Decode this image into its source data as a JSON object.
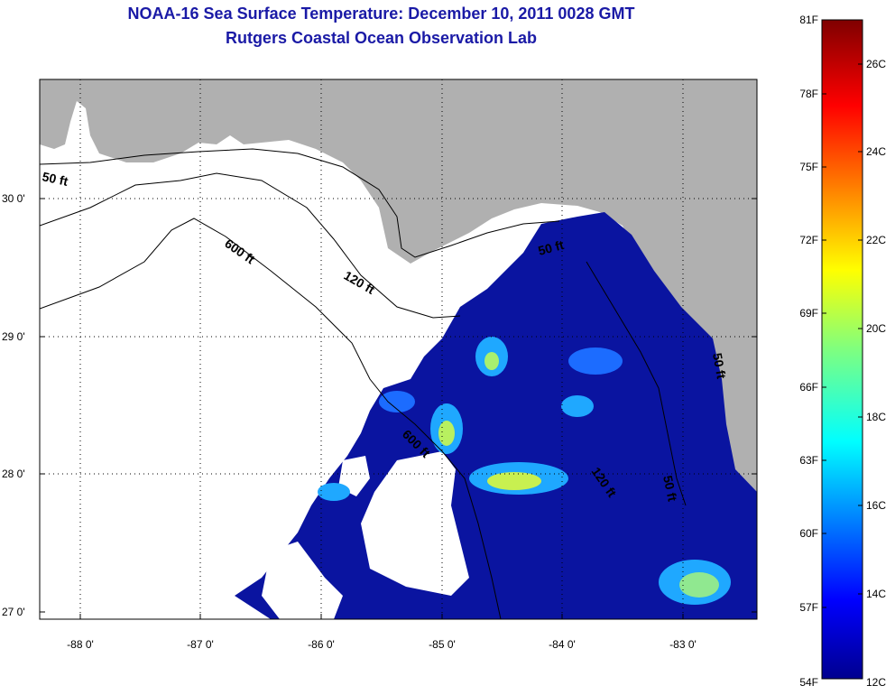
{
  "title": "NOAA-16 Sea Surface Temperature:  December 10, 2011 0028 GMT",
  "subtitle": "Rutgers Coastal Ocean Observation Lab",
  "map": {
    "lat_labels": [
      "30 0'",
      "29 0'",
      "28 0'",
      "27 0'"
    ],
    "lon_labels": [
      "-88 0'",
      "-87 0'",
      "-86 0'",
      "-85 0'",
      "-84 0'",
      "-83 0'"
    ],
    "contour_labels": [
      "50 ft",
      "600 ft",
      "120 ft",
      "50 ft",
      "600 ft",
      "120 ft",
      "50 ft",
      "50 ft"
    ],
    "colors": {
      "land": "#b0b0b0",
      "no_data": "#ffffff",
      "water_cold": "#0a14a0"
    }
  },
  "colorbar": {
    "fahrenheit_labels": [
      "81F",
      "78F",
      "75F",
      "72F",
      "69F",
      "66F",
      "63F",
      "60F",
      "57F",
      "54F"
    ],
    "celsius_labels": [
      "26C",
      "24C",
      "22C",
      "20C",
      "18C",
      "16C",
      "14C",
      "12C"
    ]
  }
}
